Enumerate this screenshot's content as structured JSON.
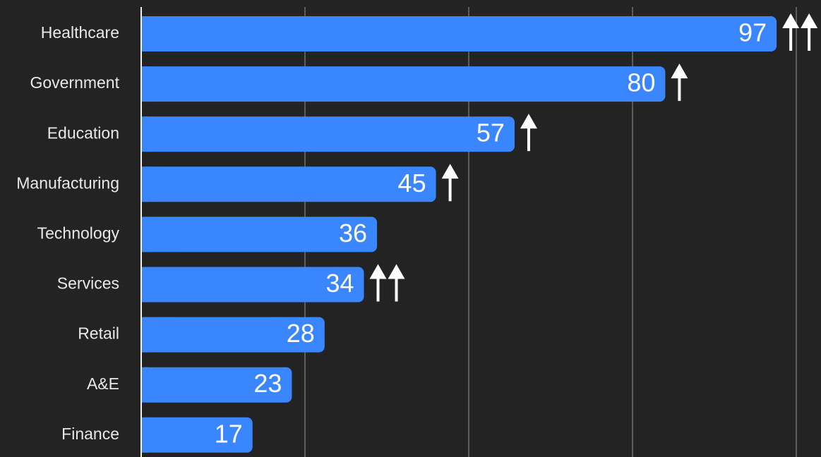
{
  "chart_data": {
    "type": "bar",
    "orientation": "horizontal",
    "categories": [
      "Healthcare",
      "Government",
      "Education",
      "Manufacturing",
      "Technology",
      "Services",
      "Retail",
      "A&E",
      "Finance"
    ],
    "values": [
      97,
      80,
      57,
      45,
      36,
      34,
      28,
      23,
      17
    ],
    "trend_arrows": [
      2,
      1,
      1,
      1,
      0,
      2,
      0,
      0,
      0
    ],
    "title": "",
    "xlabel": "",
    "ylabel": "",
    "xlim": [
      0,
      100
    ],
    "grid": true,
    "legend": "none",
    "colors": {
      "background": "#232323",
      "bar": "#3a86ff",
      "gridline": "#5a5a5a",
      "axis": "#f0f0f0",
      "label": "#e8e8e8",
      "value_label": "#ffffff",
      "arrow": "#ffffff"
    },
    "arrow_icon": "up-arrow-icon"
  }
}
